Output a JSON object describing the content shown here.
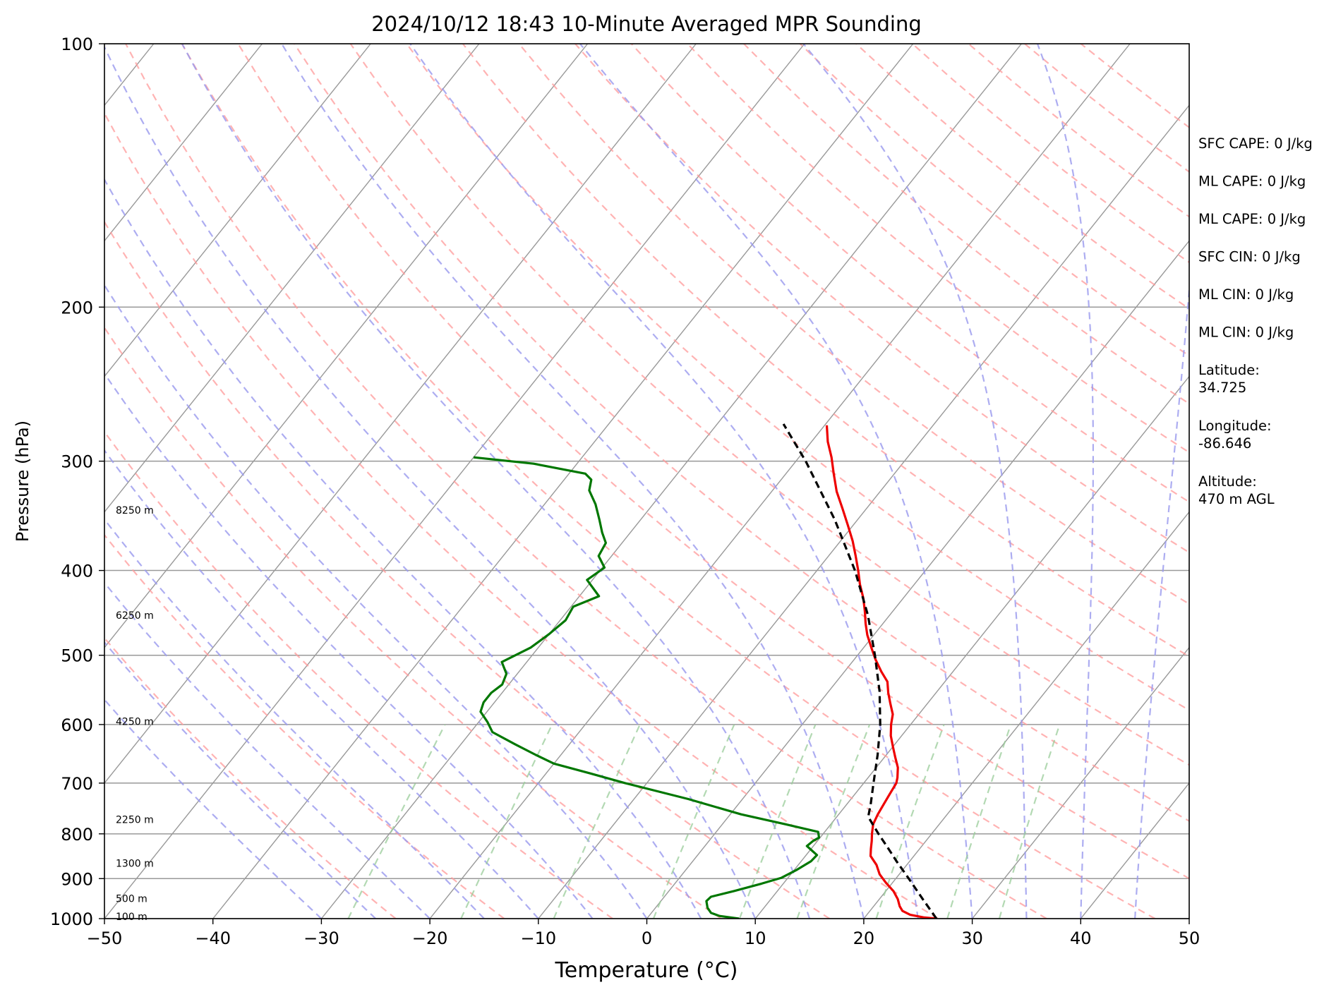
{
  "chart_data": {
    "type": "line",
    "title": "2024/10/12 18:43 10-Minute Averaged MPR Sounding",
    "xlabel": "Temperature (°C)",
    "ylabel": "Pressure (hPa)",
    "xlim": [
      -50,
      50
    ],
    "ylim": [
      1000,
      100
    ],
    "y_scale": "log",
    "skew": true,
    "grid": true,
    "x_ticks": [
      "−50",
      "−40",
      "−30",
      "−20",
      "−10",
      "0",
      "10",
      "20",
      "30",
      "40",
      "50"
    ],
    "y_ticks": [
      "100",
      "200",
      "300",
      "400",
      "500",
      "600",
      "700",
      "800",
      "900",
      "1000"
    ],
    "series": [
      {
        "role": "temperature",
        "color": "#ee0000",
        "points": [
          {
            "p": 1000,
            "t": 26.7
          },
          {
            "p": 997,
            "t": 25.5
          },
          {
            "p": 990,
            "t": 24.0
          },
          {
            "p": 980,
            "t": 23.0
          },
          {
            "p": 968,
            "t": 22.4
          },
          {
            "p": 950,
            "t": 21.7
          },
          {
            "p": 930,
            "t": 20.7
          },
          {
            "p": 910,
            "t": 19.4
          },
          {
            "p": 890,
            "t": 18.2
          },
          {
            "p": 868,
            "t": 17.2
          },
          {
            "p": 848,
            "t": 16.0
          },
          {
            "p": 832,
            "t": 15.5
          },
          {
            "p": 815,
            "t": 15.0
          },
          {
            "p": 800,
            "t": 14.5
          },
          {
            "p": 780,
            "t": 13.9
          },
          {
            "p": 760,
            "t": 13.6
          },
          {
            "p": 740,
            "t": 13.4
          },
          {
            "p": 720,
            "t": 13.2
          },
          {
            "p": 700,
            "t": 13.0
          },
          {
            "p": 690,
            "t": 12.7
          },
          {
            "p": 672,
            "t": 12.0
          },
          {
            "p": 654,
            "t": 11.0
          },
          {
            "p": 636,
            "t": 10.0
          },
          {
            "p": 618,
            "t": 9.0
          },
          {
            "p": 600,
            "t": 8.2
          },
          {
            "p": 584,
            "t": 7.6
          },
          {
            "p": 568,
            "t": 6.6
          },
          {
            "p": 552,
            "t": 5.6
          },
          {
            "p": 536,
            "t": 4.7
          },
          {
            "p": 522,
            "t": 3.4
          },
          {
            "p": 506,
            "t": 2.0
          },
          {
            "p": 490,
            "t": 0.7
          },
          {
            "p": 474,
            "t": -0.6
          },
          {
            "p": 460,
            "t": -1.6
          },
          {
            "p": 445,
            "t": -2.6
          },
          {
            "p": 430,
            "t": -3.7
          },
          {
            "p": 415,
            "t": -5.0
          },
          {
            "p": 400,
            "t": -6.2
          },
          {
            "p": 385,
            "t": -7.5
          },
          {
            "p": 370,
            "t": -8.9
          },
          {
            "p": 355,
            "t": -10.5
          },
          {
            "p": 340,
            "t": -12.2
          },
          {
            "p": 325,
            "t": -14.0
          },
          {
            "p": 310,
            "t": -15.6
          },
          {
            "p": 297,
            "t": -17.0
          },
          {
            "p": 285,
            "t": -18.5
          },
          {
            "p": 273,
            "t": -19.8
          }
        ]
      },
      {
        "role": "dewpoint",
        "color": "#007700",
        "points": [
          {
            "p": 1000,
            "t": 8.5
          },
          {
            "p": 993,
            "t": 6.5
          },
          {
            "p": 985,
            "t": 5.5
          },
          {
            "p": 972,
            "t": 4.8
          },
          {
            "p": 955,
            "t": 4.2
          },
          {
            "p": 944,
            "t": 4.3
          },
          {
            "p": 930,
            "t": 6.0
          },
          {
            "p": 912,
            "t": 8.0
          },
          {
            "p": 898,
            "t": 9.4
          },
          {
            "p": 880,
            "t": 10.2
          },
          {
            "p": 860,
            "t": 10.9
          },
          {
            "p": 846,
            "t": 11.0
          },
          {
            "p": 836,
            "t": 10.2
          },
          {
            "p": 826,
            "t": 9.4
          },
          {
            "p": 815,
            "t": 9.6
          },
          {
            "p": 808,
            "t": 9.9
          },
          {
            "p": 796,
            "t": 9.4
          },
          {
            "p": 780,
            "t": 5.8
          },
          {
            "p": 760,
            "t": 1.0
          },
          {
            "p": 730,
            "t": -5.0
          },
          {
            "p": 700,
            "t": -12.0
          },
          {
            "p": 682,
            "t": -16.0
          },
          {
            "p": 665,
            "t": -20.0
          },
          {
            "p": 650,
            "t": -22.3
          },
          {
            "p": 632,
            "t": -25.0
          },
          {
            "p": 612,
            "t": -28.0
          },
          {
            "p": 596,
            "t": -29.2
          },
          {
            "p": 580,
            "t": -30.6
          },
          {
            "p": 566,
            "t": -31.0
          },
          {
            "p": 552,
            "t": -31.0
          },
          {
            "p": 540,
            "t": -30.6
          },
          {
            "p": 525,
            "t": -31.0
          },
          {
            "p": 509,
            "t": -32.3
          },
          {
            "p": 490,
            "t": -30.7
          },
          {
            "p": 473,
            "t": -30.0
          },
          {
            "p": 456,
            "t": -29.5
          },
          {
            "p": 440,
            "t": -29.8
          },
          {
            "p": 428,
            "t": -28.2
          },
          {
            "p": 410,
            "t": -30.5
          },
          {
            "p": 397,
            "t": -29.8
          },
          {
            "p": 385,
            "t": -31.2
          },
          {
            "p": 372,
            "t": -31.5
          },
          {
            "p": 362,
            "t": -32.6
          },
          {
            "p": 350,
            "t": -33.8
          },
          {
            "p": 336,
            "t": -35.3
          },
          {
            "p": 324,
            "t": -36.9
          },
          {
            "p": 315,
            "t": -37.5
          },
          {
            "p": 310,
            "t": -38.5
          },
          {
            "p": 302,
            "t": -44.0
          },
          {
            "p": 297,
            "t": -50.0
          }
        ]
      },
      {
        "role": "parcel",
        "color": "#000000",
        "dashed": true,
        "points": [
          {
            "p": 1000,
            "t": 26.7
          },
          {
            "p": 950,
            "t": 24.0
          },
          {
            "p": 900,
            "t": 21.2
          },
          {
            "p": 860,
            "t": 18.8
          },
          {
            "p": 830,
            "t": 17.0
          },
          {
            "p": 800,
            "t": 15.1
          },
          {
            "p": 765,
            "t": 12.9
          },
          {
            "p": 740,
            "t": 12.2
          },
          {
            "p": 700,
            "t": 10.9
          },
          {
            "p": 650,
            "t": 9.2
          },
          {
            "p": 600,
            "t": 7.2
          },
          {
            "p": 550,
            "t": 4.7
          },
          {
            "p": 500,
            "t": 1.6
          },
          {
            "p": 450,
            "t": -2.0
          },
          {
            "p": 400,
            "t": -6.5
          },
          {
            "p": 350,
            "t": -12.1
          },
          {
            "p": 300,
            "t": -19.1
          },
          {
            "p": 272,
            "t": -23.9
          }
        ]
      }
    ],
    "height_labels": [
      {
        "text": "100 m",
        "p": 996
      },
      {
        "text": "500 m",
        "p": 950
      },
      {
        "text": "1300 m",
        "p": 866
      },
      {
        "text": "2250 m",
        "p": 772
      },
      {
        "text": "4250 m",
        "p": 596
      },
      {
        "text": "6250 m",
        "p": 451
      },
      {
        "text": "8250 m",
        "p": 342
      }
    ],
    "reference_lines": {
      "dry_adiabats_color": "#ff9999",
      "moist_adiabats_color": "#9999ee",
      "mixing_ratio_color": "#99cc99",
      "isotherm_color": "#999999"
    }
  },
  "side_panel": [
    {
      "text": "SFC CAPE: 0 J/kg"
    },
    {
      "text": "ML CAPE: 0 J/kg"
    },
    {
      "text": "ML CAPE: 0 J/kg"
    },
    {
      "text": "SFC CIN: 0 J/kg"
    },
    {
      "text": "ML CIN: 0 J/kg"
    },
    {
      "text": "ML CIN: 0 J/kg"
    },
    {
      "text": "Latitude:\n34.725"
    },
    {
      "text": "Longitude:\n-86.646"
    },
    {
      "text": "Altitude:\n470 m AGL"
    }
  ]
}
